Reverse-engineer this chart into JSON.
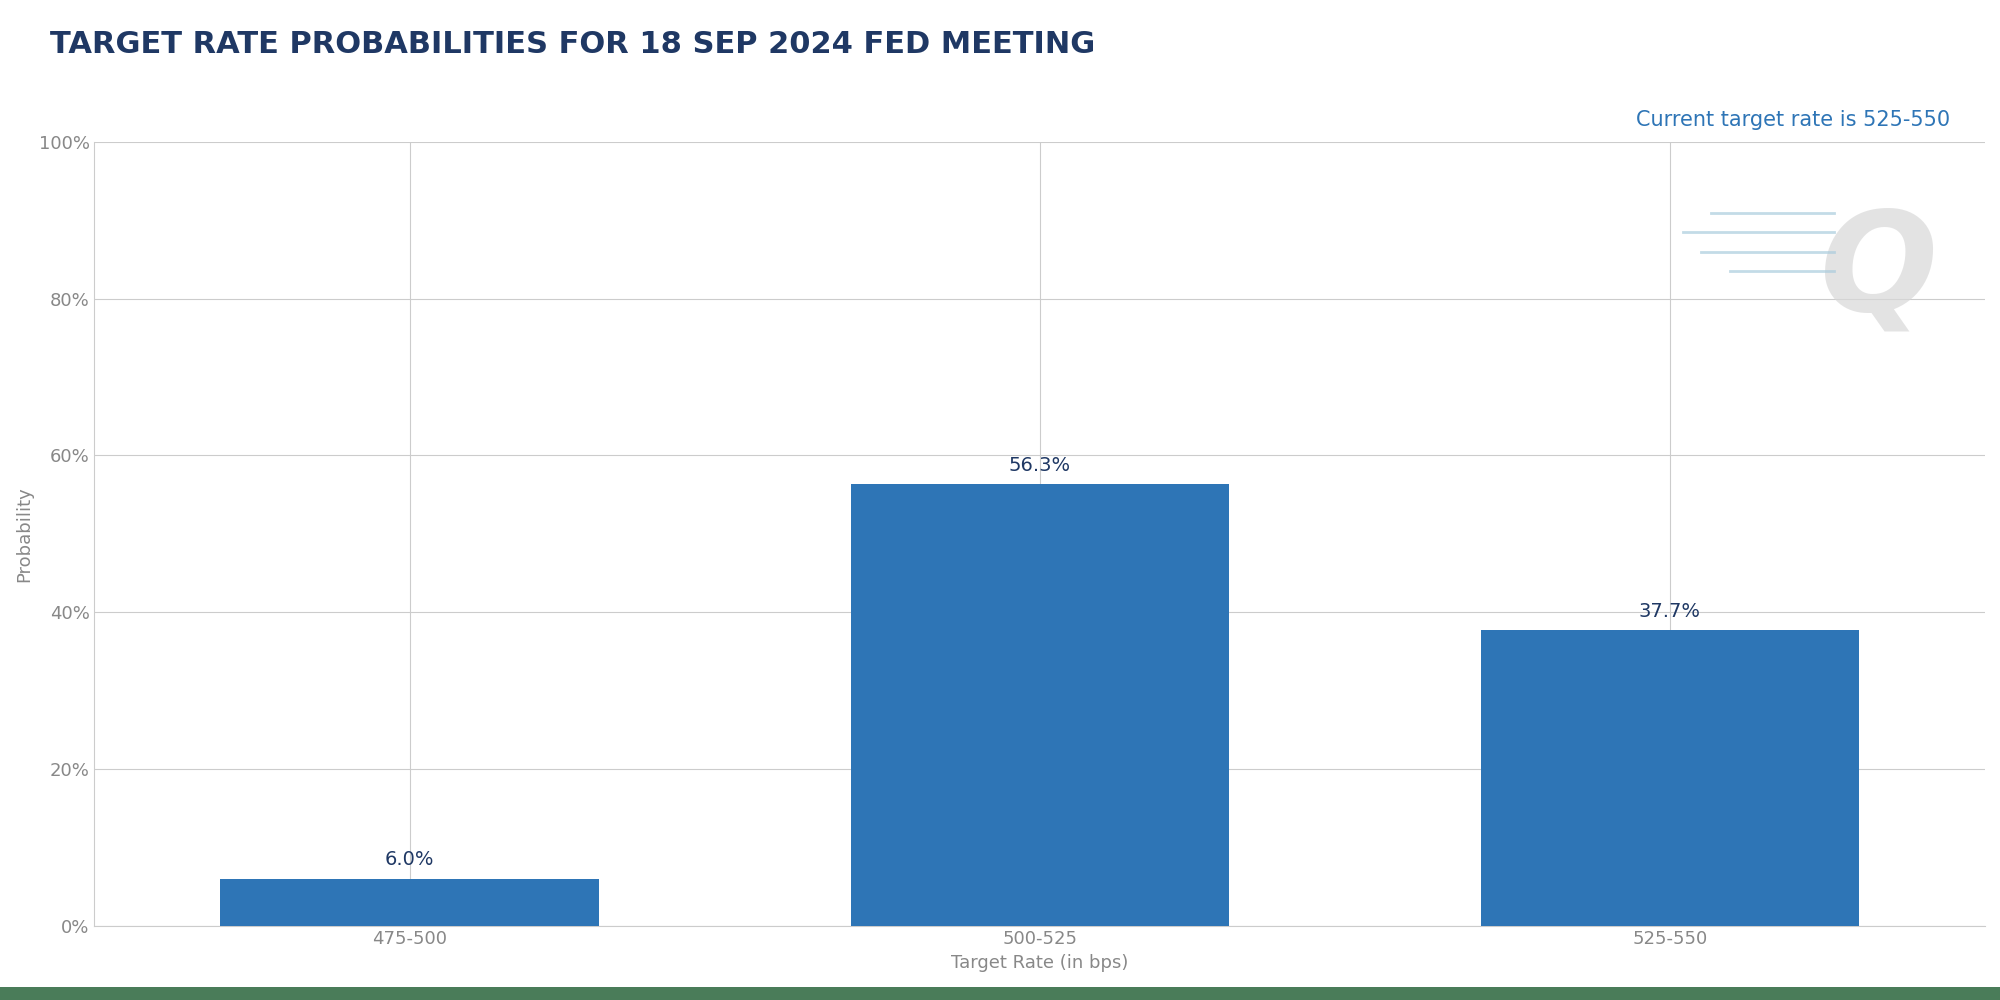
{
  "title": "TARGET RATE PROBABILITIES FOR 18 SEP 2024 FED MEETING",
  "subtitle": "Current target rate is 525-550",
  "categories": [
    "475-500",
    "500-525",
    "525-550"
  ],
  "values": [
    6.0,
    56.3,
    37.7
  ],
  "bar_color": "#2e75b6",
  "xlabel": "Target Rate (in bps)",
  "ylabel": "Probability",
  "ylim": [
    0,
    100
  ],
  "yticks": [
    0,
    20,
    40,
    60,
    80,
    100
  ],
  "ytick_labels": [
    "0%",
    "20%",
    "40%",
    "60%",
    "80%",
    "100%"
  ],
  "title_color": "#1f3864",
  "subtitle_color": "#2e75b6",
  "axis_label_color": "#888888",
  "tick_label_color": "#888888",
  "background_color": "#ffffff",
  "title_fontsize": 22,
  "subtitle_fontsize": 15,
  "xlabel_fontsize": 13,
  "ylabel_fontsize": 13,
  "bar_label_fontsize": 14,
  "watermark_text": "Q",
  "watermark_color": "#d8d8d8",
  "bottom_bar_color": "#4a7c59",
  "grid_color": "#cccccc"
}
